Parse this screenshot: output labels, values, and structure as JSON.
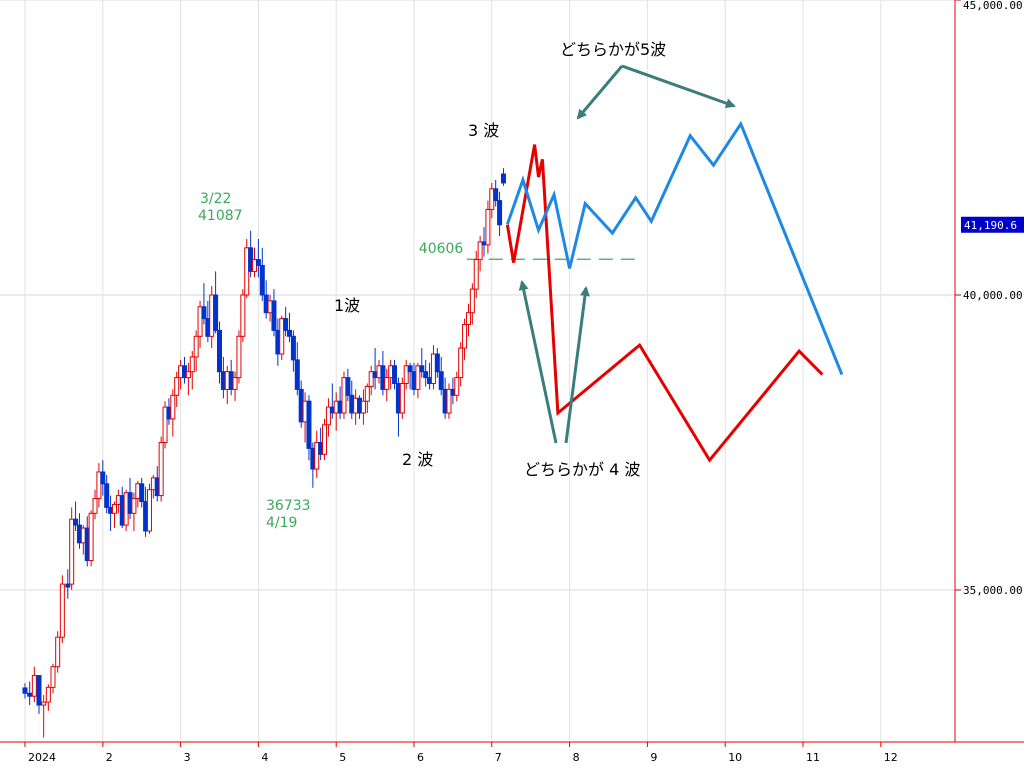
{
  "chart_data": {
    "type": "candlestick",
    "y_axis": {
      "min": 32000,
      "max": 45000,
      "ticks": [
        {
          "value": 45000,
          "label": "45,000.00"
        },
        {
          "value": 40000,
          "label": "40,000.00"
        },
        {
          "value": 35000,
          "label": "35,000.00"
        }
      ],
      "current_price": {
        "value": 41190.6,
        "label": "41,190.6"
      }
    },
    "x_axis": {
      "ticks": [
        "2024",
        "2",
        "3",
        "4",
        "5",
        "6",
        "7",
        "8",
        "9",
        "10",
        "11",
        "12"
      ],
      "tick_index": [
        0,
        1,
        2,
        3,
        4,
        5,
        6,
        7,
        8,
        9,
        10,
        11
      ]
    },
    "candles": [
      [
        0.0,
        33340,
        33420,
        33160,
        33250
      ],
      [
        0.06,
        33250,
        33450,
        33050,
        33200
      ],
      [
        0.12,
        33200,
        33700,
        33100,
        33550
      ],
      [
        0.18,
        33550,
        33500,
        32900,
        33050
      ],
      [
        0.24,
        33050,
        33220,
        32500,
        33100
      ],
      [
        0.3,
        33100,
        33400,
        32950,
        33350
      ],
      [
        0.36,
        33350,
        33750,
        33250,
        33700
      ],
      [
        0.42,
        33700,
        34300,
        33600,
        34200
      ],
      [
        0.48,
        34200,
        35250,
        34100,
        35100
      ],
      [
        0.55,
        35100,
        35350,
        34850,
        35050
      ],
      [
        0.6,
        35100,
        36400,
        35000,
        36200
      ],
      [
        0.65,
        36200,
        36500,
        36000,
        36100
      ],
      [
        0.7,
        36100,
        36300,
        35700,
        35800
      ],
      [
        0.75,
        35800,
        36100,
        35600,
        36050
      ],
      [
        0.8,
        36050,
        36250,
        35400,
        35500
      ],
      [
        0.85,
        35500,
        36350,
        35400,
        36300
      ],
      [
        0.9,
        36300,
        36700,
        36200,
        36550
      ],
      [
        0.95,
        36550,
        37150,
        36400,
        37000
      ],
      [
        1.0,
        37000,
        37200,
        36600,
        36800
      ],
      [
        1.05,
        36800,
        36950,
        36300,
        36400
      ],
      [
        1.1,
        36400,
        36600,
        36000,
        36300
      ],
      [
        1.15,
        36300,
        36500,
        36050,
        36450
      ],
      [
        1.2,
        36450,
        36700,
        36300,
        36600
      ],
      [
        1.25,
        36600,
        36750,
        36050,
        36100
      ],
      [
        1.3,
        36100,
        36700,
        36000,
        36650
      ],
      [
        1.35,
        36650,
        36900,
        36200,
        36300
      ],
      [
        1.4,
        36300,
        36650,
        36000,
        36550
      ],
      [
        1.45,
        36550,
        36850,
        36400,
        36800
      ],
      [
        1.5,
        36800,
        36900,
        36400,
        36500
      ],
      [
        1.55,
        36500,
        36750,
        35900,
        36000
      ],
      [
        1.6,
        36000,
        36800,
        35950,
        36700
      ],
      [
        1.65,
        36700,
        36950,
        36550,
        36900
      ],
      [
        1.7,
        36900,
        37100,
        36500,
        36600
      ],
      [
        1.75,
        36600,
        37600,
        36500,
        37500
      ],
      [
        1.8,
        37500,
        38200,
        37400,
        38100
      ],
      [
        1.85,
        38100,
        38250,
        37800,
        37900
      ],
      [
        1.9,
        37900,
        38400,
        37600,
        38300
      ],
      [
        1.95,
        38300,
        38700,
        38100,
        38600
      ],
      [
        2.0,
        38600,
        38900,
        38400,
        38800
      ],
      [
        2.05,
        38800,
        38950,
        38500,
        38600
      ],
      [
        2.1,
        38600,
        38850,
        38300,
        38700
      ],
      [
        2.15,
        38700,
        39050,
        38400,
        38950
      ],
      [
        2.2,
        38950,
        39400,
        38700,
        39300
      ],
      [
        2.25,
        39300,
        39900,
        39100,
        39800
      ],
      [
        2.3,
        39800,
        40200,
        39500,
        39600
      ],
      [
        2.35,
        39600,
        39900,
        39200,
        39300
      ],
      [
        2.4,
        39300,
        40150,
        39100,
        40000
      ],
      [
        2.45,
        40000,
        40400,
        39350,
        39400
      ],
      [
        2.5,
        39400,
        39550,
        38500,
        38700
      ],
      [
        2.55,
        38700,
        38950,
        38250,
        38400
      ],
      [
        2.6,
        38400,
        38800,
        38150,
        38700
      ],
      [
        2.65,
        38700,
        38900,
        38300,
        38400
      ],
      [
        2.7,
        38400,
        38700,
        38200,
        38600
      ],
      [
        2.75,
        38600,
        39400,
        38500,
        39300
      ],
      [
        2.8,
        39300,
        40100,
        39200,
        40000
      ],
      [
        2.85,
        40000,
        40950,
        39950,
        40800
      ],
      [
        2.9,
        40800,
        41087,
        40300,
        40400
      ],
      [
        2.95,
        40400,
        40800,
        40300,
        40600
      ],
      [
        3.0,
        40600,
        40950,
        40300,
        40500
      ],
      [
        3.05,
        40500,
        40800,
        39900,
        40000
      ],
      [
        3.1,
        40000,
        40250,
        39600,
        39700
      ],
      [
        3.15,
        39700,
        40000,
        39550,
        39900
      ],
      [
        3.2,
        39900,
        40100,
        39300,
        39400
      ],
      [
        3.25,
        39400,
        39600,
        38800,
        39000
      ],
      [
        3.3,
        39000,
        39650,
        38900,
        39600
      ],
      [
        3.35,
        39600,
        39800,
        39300,
        39400
      ],
      [
        3.4,
        39400,
        39700,
        39200,
        39300
      ],
      [
        3.45,
        39300,
        39400,
        38700,
        38900
      ],
      [
        3.5,
        38900,
        39200,
        38300,
        38400
      ],
      [
        3.55,
        38400,
        38550,
        37750,
        37850
      ],
      [
        3.6,
        37850,
        38350,
        37500,
        38200
      ],
      [
        3.65,
        38200,
        38300,
        37200,
        37400
      ],
      [
        3.7,
        37400,
        37500,
        36733,
        37050
      ],
      [
        3.75,
        37050,
        37700,
        36900,
        37500
      ],
      [
        3.8,
        37500,
        37750,
        37200,
        37300
      ],
      [
        3.85,
        37300,
        37900,
        37200,
        37800
      ],
      [
        3.9,
        37800,
        38250,
        37600,
        38100
      ],
      [
        3.95,
        38100,
        38500,
        37900,
        38000
      ],
      [
        4.0,
        38000,
        38350,
        37700,
        38200
      ],
      [
        4.05,
        38200,
        38450,
        37900,
        38000
      ],
      [
        4.1,
        38000,
        38700,
        37900,
        38600
      ],
      [
        4.15,
        38600,
        38750,
        38200,
        38300
      ],
      [
        4.2,
        38300,
        38550,
        37900,
        38000
      ],
      [
        4.25,
        38000,
        38400,
        37800,
        38250
      ],
      [
        4.3,
        38250,
        38300,
        37900,
        38000
      ],
      [
        4.35,
        38000,
        38400,
        37800,
        38200
      ],
      [
        4.4,
        38200,
        38500,
        38000,
        38450
      ],
      [
        4.45,
        38450,
        38800,
        38300,
        38700
      ],
      [
        4.5,
        38700,
        39100,
        38400,
        38600
      ],
      [
        4.55,
        38600,
        38900,
        38500,
        38800
      ],
      [
        4.6,
        38800,
        39050,
        38300,
        38400
      ],
      [
        4.65,
        38400,
        38750,
        38200,
        38600
      ],
      [
        4.7,
        38600,
        38900,
        38400,
        38800
      ],
      [
        4.75,
        38800,
        38900,
        38400,
        38500
      ],
      [
        4.8,
        38500,
        38600,
        37600,
        38000
      ],
      [
        4.85,
        38000,
        38600,
        37900,
        38500
      ],
      [
        4.9,
        38500,
        38900,
        38400,
        38800
      ],
      [
        4.95,
        38800,
        38850,
        38400,
        38700
      ],
      [
        5.0,
        38700,
        38850,
        38300,
        38400
      ],
      [
        5.05,
        38400,
        38850,
        38250,
        38800
      ],
      [
        5.1,
        38800,
        39100,
        38600,
        38700
      ],
      [
        5.15,
        38700,
        38900,
        38450,
        38600
      ],
      [
        5.2,
        38600,
        38850,
        38400,
        38500
      ],
      [
        5.25,
        38500,
        39150,
        38400,
        39000
      ],
      [
        5.3,
        39000,
        39100,
        38600,
        38700
      ],
      [
        5.35,
        38700,
        38950,
        38300,
        38400
      ],
      [
        5.4,
        38400,
        38600,
        37900,
        38000
      ],
      [
        5.45,
        38000,
        38500,
        37900,
        38400
      ],
      [
        5.5,
        38400,
        38600,
        38150,
        38300
      ],
      [
        5.55,
        38300,
        38700,
        38200,
        38600
      ],
      [
        5.6,
        38600,
        39200,
        38450,
        39100
      ],
      [
        5.65,
        39100,
        39600,
        38900,
        39500
      ],
      [
        5.7,
        39500,
        39850,
        39300,
        39700
      ],
      [
        5.75,
        39700,
        40200,
        39500,
        40100
      ],
      [
        5.8,
        40100,
        40750,
        39950,
        40600
      ],
      [
        5.85,
        40600,
        41000,
        40400,
        40900
      ],
      [
        5.9,
        40900,
        41150,
        40650,
        40850
      ],
      [
        5.95,
        40850,
        41600,
        40700,
        41450
      ],
      [
        6.0,
        41450,
        41900,
        41300,
        41800
      ],
      [
        6.05,
        41800,
        41950,
        41500,
        41600
      ],
      [
        6.1,
        41600,
        41750,
        41000,
        41190.6
      ],
      [
        6.15,
        42050,
        42150,
        41850,
        41900
      ]
    ],
    "series": [
      {
        "color": "#e60000",
        "points": [
          [
            6.2,
            41190
          ],
          [
            6.28,
            40550
          ],
          [
            6.55,
            42550
          ],
          [
            6.6,
            42000
          ],
          [
            6.65,
            42300
          ],
          [
            6.85,
            38000
          ],
          [
            7.9,
            39150
          ],
          [
            8.8,
            37200
          ],
          [
            9.95,
            39050
          ],
          [
            10.25,
            38650
          ]
        ]
      },
      {
        "color": "#1e88e5",
        "points": [
          [
            6.2,
            41200
          ],
          [
            6.4,
            41950
          ],
          [
            6.6,
            41100
          ],
          [
            6.8,
            41700
          ],
          [
            7.0,
            40450
          ],
          [
            7.2,
            41550
          ],
          [
            7.55,
            41050
          ],
          [
            7.85,
            41650
          ],
          [
            8.05,
            41250
          ],
          [
            8.55,
            42700
          ],
          [
            8.85,
            42200
          ],
          [
            9.2,
            42900
          ],
          [
            10.5,
            38650
          ]
        ]
      }
    ],
    "reference_lines": [
      {
        "value": 40606,
        "label": "40606",
        "color": "#3aaa5a",
        "x_start": 5.55,
        "x_end": 7.85
      }
    ],
    "annotations": [
      {
        "id": "wave1",
        "text": "1波",
        "color": "#000000"
      },
      {
        "id": "wave2",
        "text": "2 波",
        "color": "#000000"
      },
      {
        "id": "wave3",
        "text": "3 波",
        "color": "#000000"
      },
      {
        "id": "wave4",
        "text": "どちらかが 4 波",
        "color": "#000000"
      },
      {
        "id": "wave5",
        "text": "どちらかが5波",
        "color": "#000000"
      },
      {
        "id": "peak_date",
        "text": "3/22",
        "color": "#3aaa5a"
      },
      {
        "id": "peak_value",
        "text": "41087",
        "color": "#3aaa5a"
      },
      {
        "id": "low_value",
        "text": "36733",
        "color": "#3aaa5a"
      },
      {
        "id": "low_date",
        "text": "4/19",
        "color": "#3aaa5a"
      }
    ],
    "up_color": "#e60000",
    "down_color": "#0033cc",
    "arrow_color": "#3a7d7d",
    "price_tag_color": "#0000cc"
  }
}
